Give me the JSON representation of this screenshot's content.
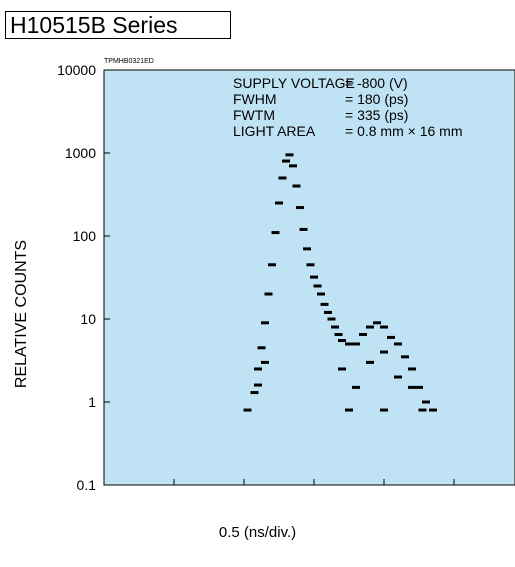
{
  "header": {
    "series_title": "H10515B Series"
  },
  "chart_code": "TPMHB0321ED",
  "chart_data": {
    "type": "scatter",
    "title": "",
    "ylabel": "RELATIVE COUNTS",
    "xlabel": "0.5 (ns/div.)",
    "yscale": "log",
    "ylim": [
      0.1,
      10000
    ],
    "yticks": [
      "10000",
      "1000",
      "100",
      "10",
      "1",
      "0.1"
    ],
    "xdivisions": 6,
    "background": "#bfe3f5",
    "annotations": [
      {
        "label": "SUPPLY VOLTAGE",
        "value": "= -800 (V)"
      },
      {
        "label": "FWHM",
        "value": "= 180 (ps)"
      },
      {
        "label": "FWTM",
        "value": "= 335 (ps)"
      },
      {
        "label": "LIGHT AREA",
        "value": "= 0.8 mm × 16 mm"
      }
    ],
    "points_div_count": [
      [
        2.05,
        0.8
      ],
      [
        2.15,
        1.3
      ],
      [
        2.2,
        2.5
      ],
      [
        2.25,
        4.5
      ],
      [
        2.3,
        9
      ],
      [
        2.35,
        20
      ],
      [
        2.4,
        45
      ],
      [
        2.45,
        110
      ],
      [
        2.5,
        250
      ],
      [
        2.55,
        500
      ],
      [
        2.6,
        800
      ],
      [
        2.65,
        950
      ],
      [
        2.7,
        700
      ],
      [
        2.75,
        400
      ],
      [
        2.8,
        220
      ],
      [
        2.85,
        120
      ],
      [
        2.9,
        70
      ],
      [
        2.95,
        45
      ],
      [
        3.0,
        32
      ],
      [
        3.05,
        25
      ],
      [
        3.1,
        20
      ],
      [
        3.15,
        15
      ],
      [
        3.2,
        12
      ],
      [
        3.25,
        10
      ],
      [
        3.3,
        8
      ],
      [
        3.35,
        6.5
      ],
      [
        3.4,
        5.5
      ],
      [
        3.5,
        5
      ],
      [
        3.6,
        5
      ],
      [
        3.7,
        6.5
      ],
      [
        3.8,
        8
      ],
      [
        3.9,
        9
      ],
      [
        4.0,
        8
      ],
      [
        4.1,
        6
      ],
      [
        4.2,
        5
      ],
      [
        4.3,
        3.5
      ],
      [
        4.4,
        2.5
      ],
      [
        4.5,
        1.5
      ],
      [
        4.6,
        1.0
      ],
      [
        4.7,
        0.8
      ],
      [
        2.2,
        1.6
      ],
      [
        2.3,
        3
      ],
      [
        3.4,
        2.5
      ],
      [
        3.6,
        1.5
      ],
      [
        3.8,
        3
      ],
      [
        4.0,
        4
      ],
      [
        4.2,
        2
      ],
      [
        4.4,
        1.5
      ],
      [
        4.55,
        0.8
      ],
      [
        3.5,
        0.8
      ],
      [
        4.0,
        0.8
      ]
    ]
  }
}
